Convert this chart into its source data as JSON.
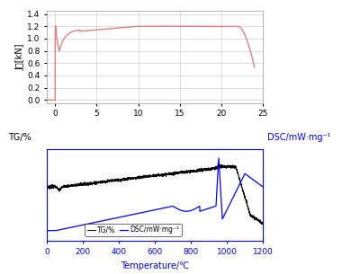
{
  "top_chart": {
    "ylabel": "J／[kN]",
    "ylim": [
      -0.05,
      1.45
    ],
    "xlim": [
      -1,
      25
    ],
    "yticks": [
      0,
      0.2,
      0.4,
      0.6,
      0.8,
      1.0,
      1.2,
      1.4
    ],
    "xticks": [
      0,
      5,
      10,
      15,
      20,
      25
    ],
    "line_color": "#e08080",
    "grid_color": "#d0d0d0"
  },
  "bottom_chart": {
    "left_ylabel": "TG/%",
    "right_ylabel": "DSC/mW·mg⁻¹",
    "xlabel": "Temperature/℃",
    "xlim": [
      0,
      1200
    ],
    "xticks": [
      0,
      200,
      400,
      600,
      800,
      1000,
      1200
    ],
    "tg_color": "black",
    "dsc_color": "blue",
    "legend_tg": "TG/%",
    "legend_dsc": "DSC/mW·mg⁻¹",
    "right_ylabel_color": "blue"
  }
}
